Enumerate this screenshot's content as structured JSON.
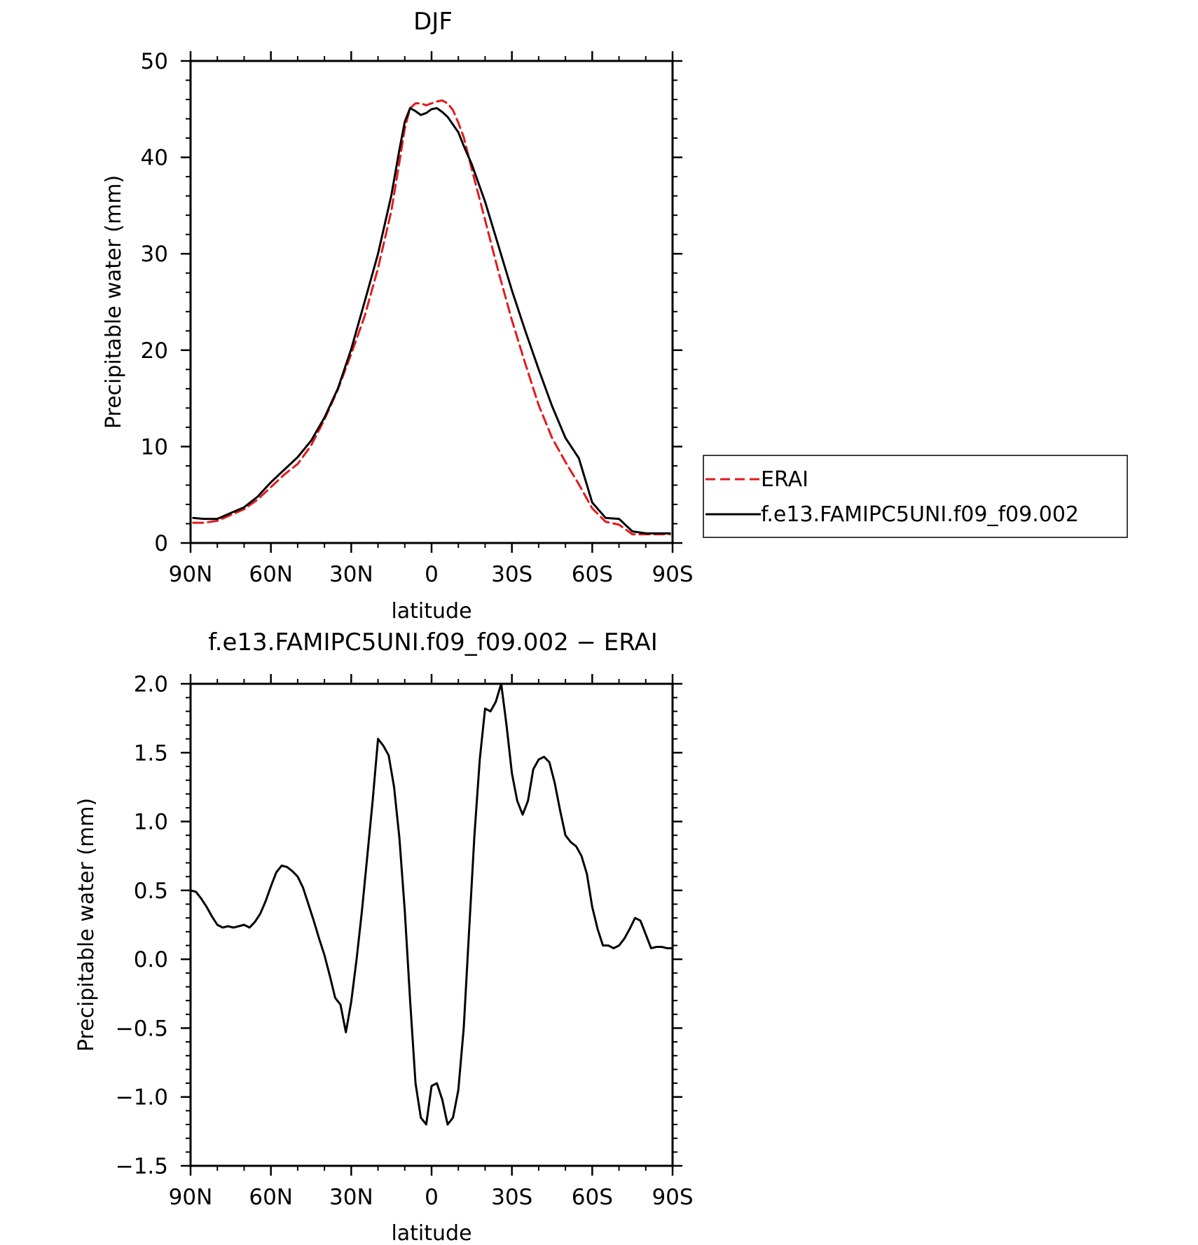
{
  "chart_data": [
    {
      "type": "line",
      "title": "DJF",
      "xlabel": "latitude",
      "ylabel": "Precipitable water (mm)",
      "xlim": [
        90,
        -90
      ],
      "ylim": [
        0,
        50
      ],
      "xticks": [
        "90N",
        "60N",
        "30N",
        "0",
        "30S",
        "60S",
        "90S"
      ],
      "yticks": [
        "0",
        "10",
        "20",
        "30",
        "40",
        "50"
      ],
      "legend_position": "right",
      "series": [
        {
          "name": "ERAI",
          "color": "#e31a1c",
          "dash": "dashed",
          "x": [
            89,
            85,
            80,
            75,
            70,
            65,
            60,
            55,
            50,
            45,
            40,
            35,
            30,
            25,
            20,
            15,
            12,
            10,
            8,
            6,
            4,
            2,
            0,
            -2,
            -4,
            -6,
            -8,
            -10,
            -12,
            -15,
            -20,
            -25,
            -30,
            -35,
            -40,
            -45,
            -50,
            -55,
            -60,
            -65,
            -70,
            -75,
            -80,
            -85,
            -89
          ],
          "y": [
            2.1,
            2.1,
            2.3,
            2.9,
            3.5,
            4.5,
            5.8,
            7.1,
            8.2,
            10.1,
            12.8,
            15.9,
            19.6,
            23.5,
            28.5,
            34.5,
            39.5,
            43.0,
            45.1,
            45.6,
            45.6,
            45.4,
            45.6,
            45.8,
            45.9,
            45.6,
            44.9,
            43.6,
            42.1,
            38.8,
            33.5,
            28.1,
            23.1,
            18.6,
            14.3,
            10.9,
            8.4,
            6.1,
            3.6,
            2.2,
            1.9,
            0.9,
            0.9,
            0.9,
            0.9
          ]
        },
        {
          "name": "f.e13.FAMIPC5UNI.f09_f09.002",
          "color": "#000000",
          "dash": "solid",
          "x": [
            89,
            85,
            80,
            75,
            70,
            65,
            60,
            55,
            50,
            45,
            40,
            35,
            30,
            25,
            20,
            15,
            12,
            10,
            8,
            6,
            4,
            2,
            0,
            -2,
            -4,
            -6,
            -8,
            -10,
            -12,
            -15,
            -20,
            -25,
            -30,
            -35,
            -40,
            -45,
            -50,
            -55,
            -60,
            -65,
            -70,
            -75,
            -80,
            -85,
            -89
          ],
          "y": [
            2.6,
            2.5,
            2.5,
            3.1,
            3.7,
            4.8,
            6.3,
            7.6,
            8.9,
            10.6,
            13.0,
            16.0,
            20.1,
            25.0,
            30.0,
            36.1,
            40.8,
            43.7,
            45.1,
            44.8,
            44.4,
            44.6,
            45.0,
            45.1,
            44.7,
            44.2,
            43.4,
            42.6,
            41.2,
            39.3,
            35.4,
            30.8,
            26.2,
            22.0,
            18.0,
            14.2,
            10.9,
            8.8,
            4.2,
            2.6,
            2.5,
            1.2,
            1.0,
            1.0,
            1.0
          ]
        }
      ]
    },
    {
      "type": "line",
      "title": "f.e13.FAMIPC5UNI.f09_f09.002 − ERAI",
      "xlabel": "latitude",
      "ylabel": "Precipitable water (mm)",
      "xlim": [
        90,
        -90
      ],
      "ylim": [
        -1.5,
        2.0
      ],
      "xticks": [
        "90N",
        "60N",
        "30N",
        "0",
        "30S",
        "60S",
        "90S"
      ],
      "yticks": [
        "−1.5",
        "−1.0",
        "−0.5",
        "0.0",
        "0.5",
        "1.0",
        "1.5",
        "2.0"
      ],
      "series": [
        {
          "name": "f.e13.FAMIPC5UNI.f09_f09.002 − ERAI",
          "color": "#000000",
          "dash": "solid",
          "x": [
            90,
            88,
            86,
            84,
            82,
            80,
            78,
            76,
            74,
            72,
            70,
            68,
            66,
            64,
            62,
            60,
            58,
            56,
            54,
            52,
            50,
            48,
            46,
            44,
            42,
            40,
            38,
            36,
            34,
            32,
            30,
            28,
            26,
            24,
            22,
            20,
            18,
            16,
            14,
            12,
            10,
            8,
            6,
            4,
            2,
            0,
            -2,
            -4,
            -6,
            -8,
            -10,
            -12,
            -14,
            -16,
            -18,
            -20,
            -22,
            -24,
            -26,
            -28,
            -30,
            -32,
            -34,
            -36,
            -38,
            -40,
            -42,
            -44,
            -46,
            -48,
            -50,
            -52,
            -54,
            -56,
            -58,
            -60,
            -62,
            -64,
            -66,
            -68,
            -70,
            -72,
            -74,
            -76,
            -78,
            -80,
            -82,
            -84,
            -86,
            -88,
            -90
          ],
          "y": [
            0.5,
            0.49,
            0.44,
            0.38,
            0.31,
            0.25,
            0.23,
            0.24,
            0.23,
            0.24,
            0.25,
            0.23,
            0.27,
            0.33,
            0.42,
            0.53,
            0.63,
            0.68,
            0.67,
            0.64,
            0.6,
            0.52,
            0.4,
            0.28,
            0.15,
            0.03,
            -0.12,
            -0.28,
            -0.33,
            -0.53,
            -0.31,
            0.0,
            0.35,
            0.75,
            1.15,
            1.6,
            1.55,
            1.48,
            1.25,
            0.88,
            0.35,
            -0.3,
            -0.9,
            -1.15,
            -1.2,
            -0.92,
            -0.9,
            -1.02,
            -1.2,
            -1.15,
            -0.95,
            -0.5,
            0.2,
            0.9,
            1.45,
            1.82,
            1.8,
            1.87,
            2.0,
            1.7,
            1.35,
            1.15,
            1.05,
            1.15,
            1.38,
            1.45,
            1.47,
            1.43,
            1.28,
            1.08,
            0.9,
            0.85,
            0.82,
            0.75,
            0.62,
            0.38,
            0.22,
            0.1,
            0.1,
            0.08,
            0.1,
            0.15,
            0.22,
            0.3,
            0.28,
            0.18,
            0.08,
            0.09,
            0.09,
            0.08,
            0.08
          ]
        }
      ]
    }
  ]
}
